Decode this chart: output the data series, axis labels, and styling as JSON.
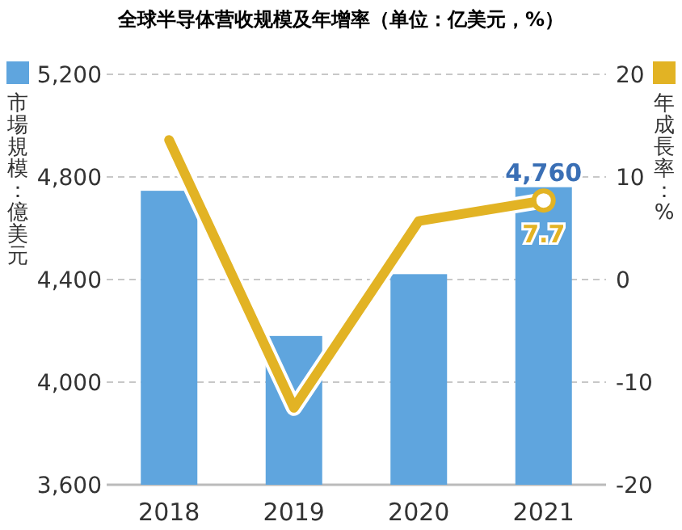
{
  "chart_data": {
    "type": "bar",
    "title": "全球半导体营收规模及年增率（单位：亿美元，%）",
    "categories": [
      "2018",
      "2019",
      "2020",
      "2021"
    ],
    "ylabel": "市場規模：億美元",
    "y2label": "年成長率：%",
    "ylim": [
      3600,
      5200
    ],
    "yticks": [
      {
        "value": 3600,
        "label": "3,600"
      },
      {
        "value": 4000,
        "label": "4,000"
      },
      {
        "value": 4400,
        "label": "4,400"
      },
      {
        "value": 4800,
        "label": "4,800"
      },
      {
        "value": 5200,
        "label": "5,200"
      }
    ],
    "y2lim": [
      -20,
      20
    ],
    "y2ticks": [
      -20,
      -10,
      0,
      10,
      20
    ],
    "grid": "y",
    "series": [
      {
        "color": "#5fa5de",
        "values": [
          4746,
          4180,
          4421,
          4760
        ],
        "value_labels": [
          null,
          null,
          null,
          "4,760"
        ]
      },
      {
        "type": "line",
        "axis": "y2",
        "color": "#e2b324",
        "values": [
          13.6,
          -12.5,
          5.7,
          7.7
        ],
        "value_labels": [
          null,
          null,
          null,
          "7.7"
        ]
      }
    ]
  }
}
